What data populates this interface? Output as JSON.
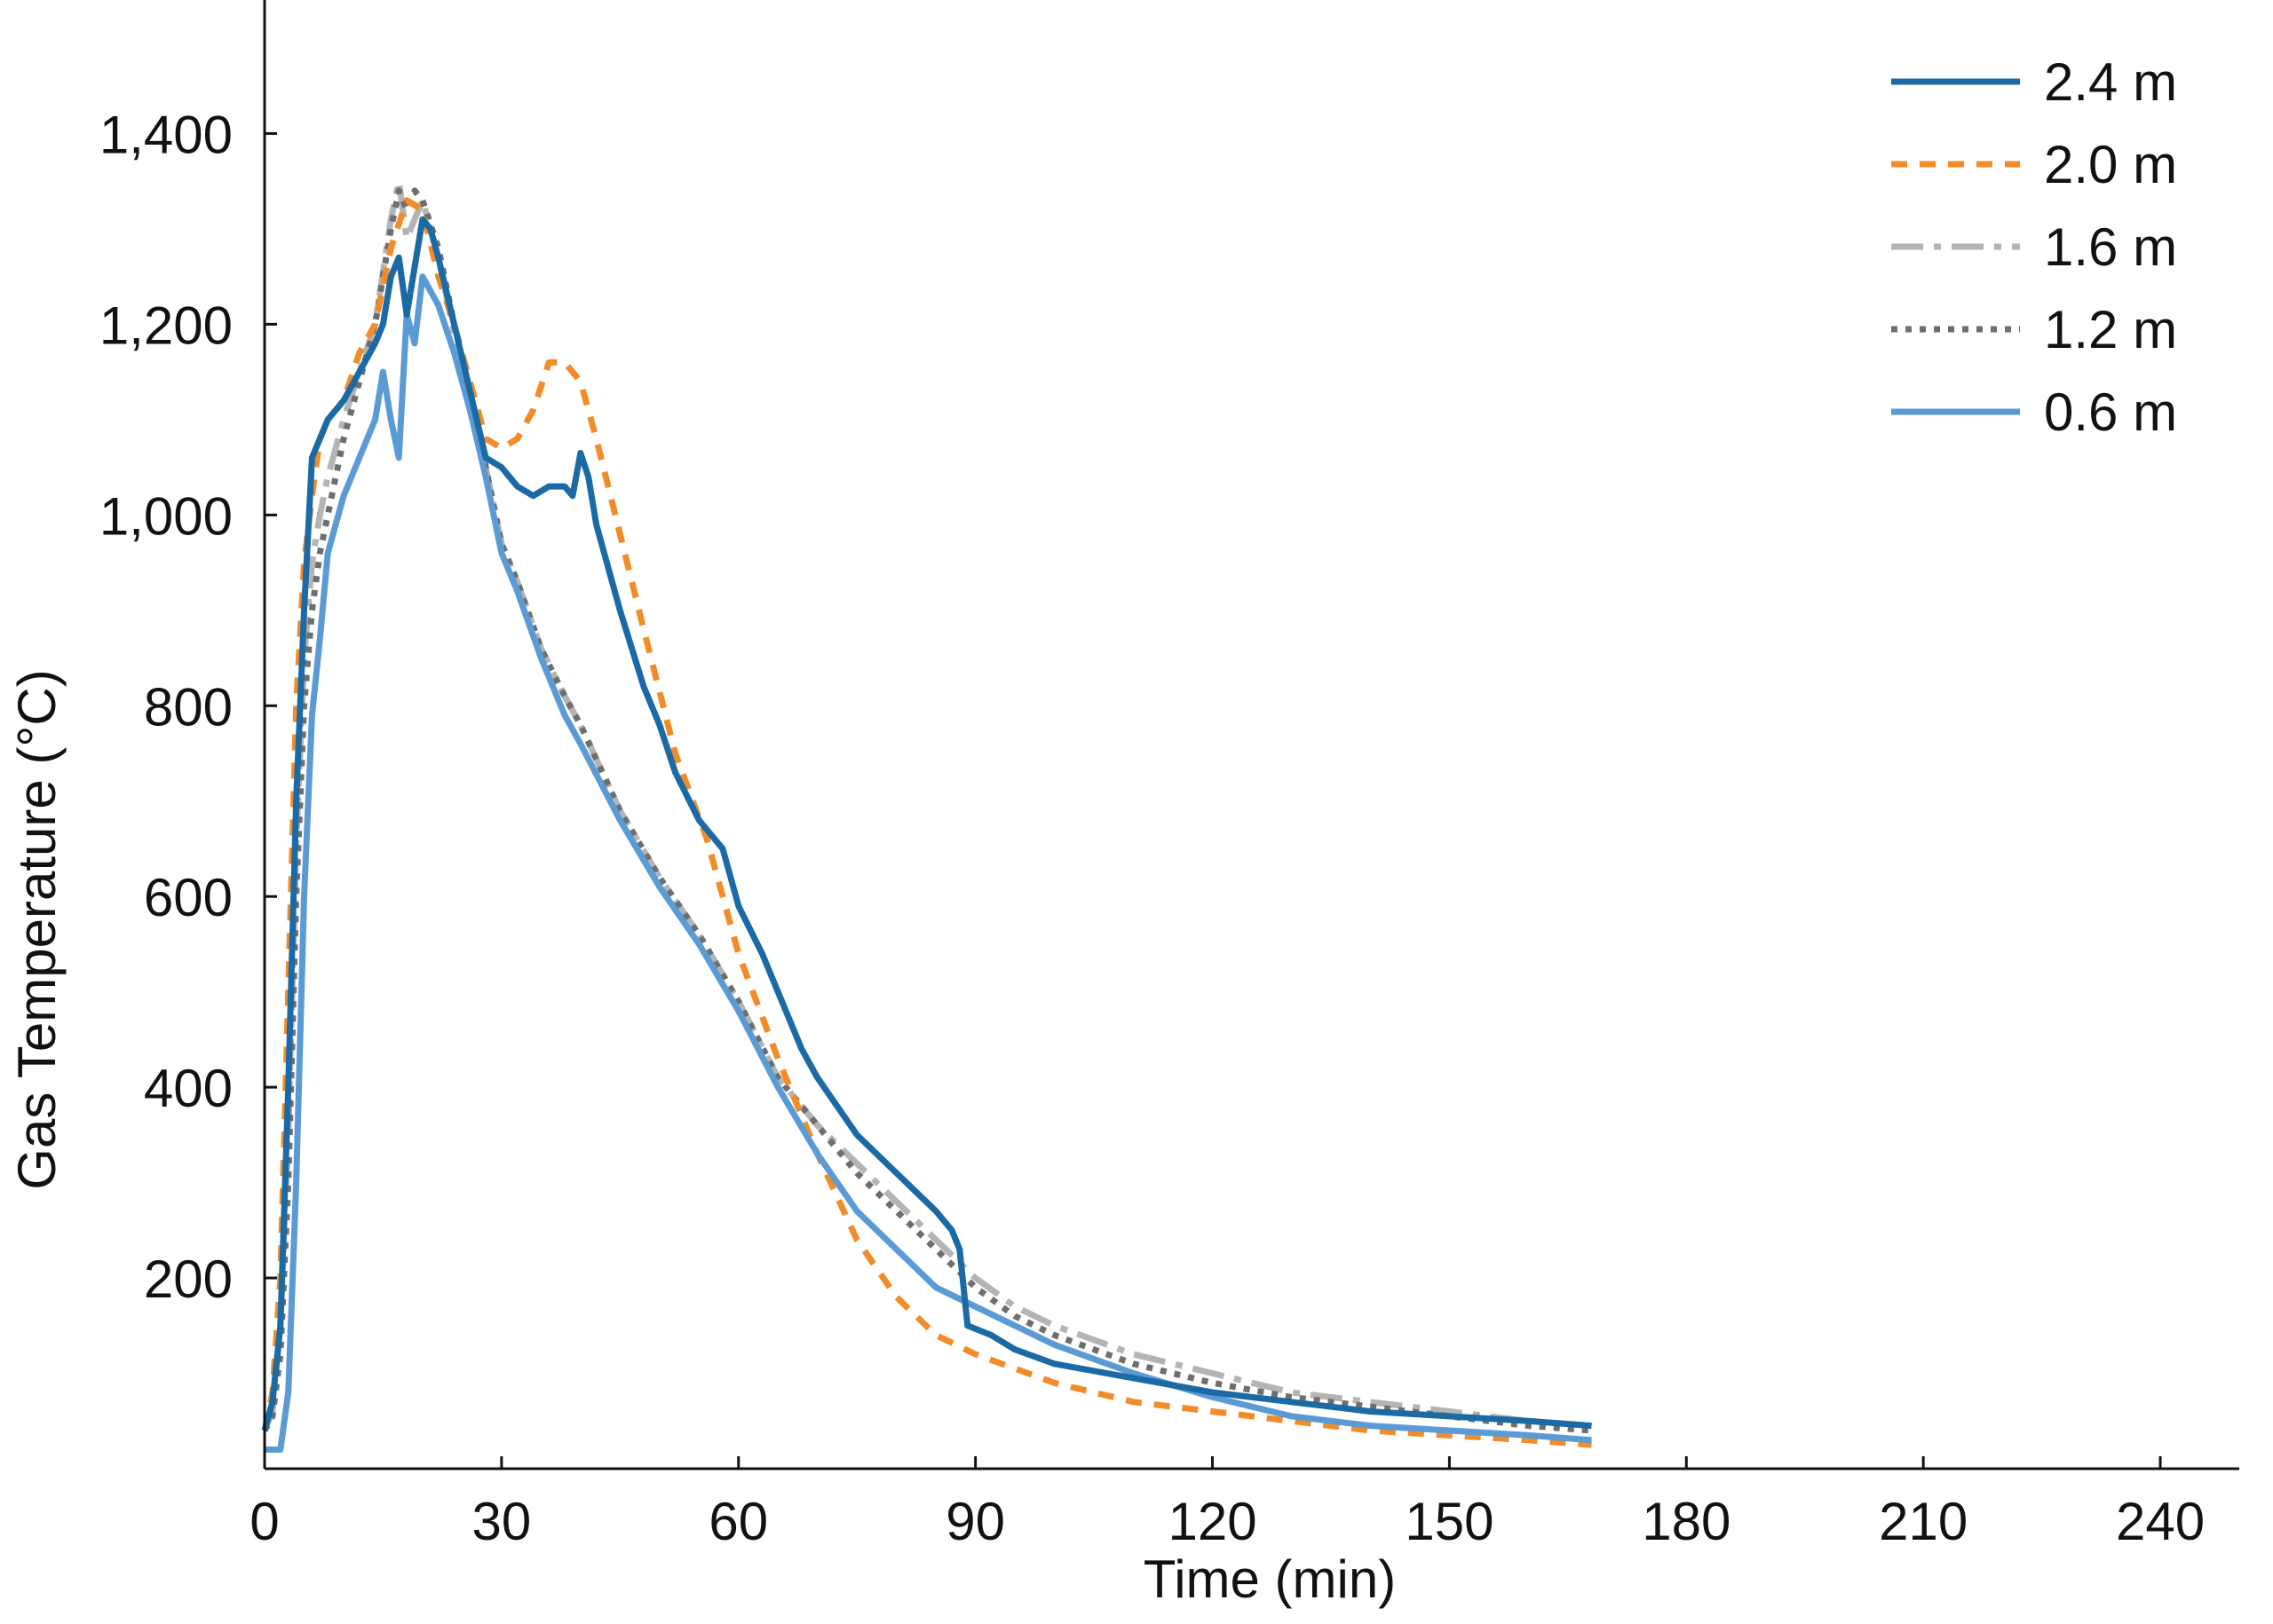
{
  "chart_data": {
    "type": "line",
    "xlabel": "Time (min)",
    "ylabel": "Gas Temperature (°C)",
    "xlim": [
      0,
      250
    ],
    "ylim": [
      0,
      1540
    ],
    "x_ticks": [
      0,
      30,
      60,
      90,
      120,
      150,
      180,
      210,
      240
    ],
    "x_tick_labels": [
      "0",
      "30",
      "60",
      "90",
      "120",
      "150",
      "180",
      "210",
      "240"
    ],
    "y_ticks": [
      200,
      400,
      600,
      800,
      1000,
      1200,
      1400
    ],
    "y_tick_labels": [
      "200",
      "400",
      "600",
      "800",
      "1,000",
      "1,200",
      "1,400"
    ],
    "grid": false,
    "legend_position": "top-right",
    "series": [
      {
        "name": "2.4 m",
        "color": "#1b6aa5",
        "dash": "solid",
        "x": [
          0,
          1,
          2,
          3,
          4,
          5,
          6,
          7,
          8,
          10,
          12,
          14,
          15,
          16,
          17,
          18,
          19,
          20,
          21,
          22,
          24,
          26,
          28,
          30,
          32,
          34,
          36,
          38,
          39,
          40,
          41,
          42,
          45,
          48,
          50,
          52,
          55,
          58,
          60,
          63,
          65,
          68,
          70,
          75,
          80,
          85,
          87,
          88,
          89,
          92,
          95,
          100,
          110,
          120,
          130,
          140,
          150,
          160,
          168
        ],
        "y": [
          40,
          70,
          150,
          400,
          700,
          900,
          1060,
          1080,
          1100,
          1120,
          1150,
          1180,
          1200,
          1250,
          1270,
          1210,
          1260,
          1310,
          1300,
          1270,
          1200,
          1130,
          1060,
          1050,
          1030,
          1020,
          1030,
          1030,
          1020,
          1065,
          1040,
          990,
          900,
          820,
          780,
          730,
          680,
          650,
          590,
          540,
          500,
          440,
          410,
          350,
          310,
          270,
          250,
          230,
          150,
          140,
          125,
          110,
          95,
          80,
          70,
          60,
          55,
          50,
          45
        ]
      },
      {
        "name": "2.0 m",
        "color": "#f28c28",
        "dash": "18 14",
        "x": [
          0,
          1,
          2,
          3,
          4,
          5,
          6,
          7,
          8,
          10,
          12,
          14,
          16,
          18,
          20,
          22,
          24,
          26,
          28,
          30,
          32,
          34,
          36,
          38,
          40,
          42,
          45,
          48,
          52,
          56,
          60,
          65,
          70,
          75,
          80,
          85,
          90,
          100,
          110,
          120,
          130,
          140,
          150,
          160,
          168
        ],
        "y": [
          40,
          80,
          200,
          500,
          800,
          950,
          1020,
          1080,
          1100,
          1120,
          1170,
          1200,
          1280,
          1330,
          1320,
          1250,
          1200,
          1140,
          1080,
          1070,
          1080,
          1110,
          1160,
          1160,
          1140,
          1080,
          980,
          880,
          750,
          660,
          540,
          430,
          330,
          240,
          180,
          140,
          120,
          90,
          70,
          60,
          50,
          40,
          35,
          30,
          25
        ]
      },
      {
        "name": "1.6 m",
        "color": "#b4b4b4",
        "dash": "36 12 8 12",
        "x": [
          0,
          1,
          2,
          3,
          4,
          5,
          6,
          7,
          8,
          10,
          12,
          14,
          16,
          17,
          18,
          20,
          22,
          24,
          26,
          28,
          30,
          32,
          35,
          38,
          40,
          45,
          50,
          55,
          60,
          65,
          70,
          75,
          80,
          85,
          90,
          95,
          100,
          110,
          120,
          130,
          140,
          150,
          160,
          168
        ],
        "y": [
          40,
          60,
          150,
          350,
          650,
          850,
          950,
          1000,
          1040,
          1100,
          1150,
          1200,
          1310,
          1350,
          1290,
          1330,
          1270,
          1190,
          1120,
          1050,
          970,
          930,
          860,
          810,
          780,
          690,
          620,
          560,
          490,
          410,
          360,
          320,
          280,
          240,
          200,
          170,
          150,
          120,
          100,
          80,
          70,
          60,
          50,
          45
        ]
      },
      {
        "name": "1.2 m",
        "color": "#6e6e6e",
        "dash": "7 9",
        "x": [
          0,
          1,
          2,
          3,
          4,
          5,
          6,
          7,
          8,
          10,
          12,
          14,
          16,
          17,
          18,
          19,
          20,
          22,
          24,
          26,
          28,
          30,
          32,
          35,
          38,
          40,
          45,
          50,
          55,
          60,
          65,
          70,
          75,
          80,
          85,
          90,
          95,
          100,
          110,
          120,
          130,
          140,
          150,
          160,
          168
        ],
        "y": [
          40,
          55,
          120,
          300,
          600,
          800,
          900,
          960,
          1000,
          1080,
          1140,
          1200,
          1300,
          1340,
          1320,
          1340,
          1330,
          1280,
          1200,
          1130,
          1050,
          970,
          930,
          860,
          810,
          780,
          690,
          620,
          560,
          490,
          410,
          360,
          310,
          270,
          230,
          190,
          160,
          140,
          110,
          90,
          75,
          65,
          55,
          45,
          40
        ]
      },
      {
        "name": "0.6 m",
        "color": "#5b9bd5",
        "dash": "solid",
        "x": [
          0,
          2,
          3,
          4,
          5,
          6,
          7,
          8,
          10,
          12,
          14,
          15,
          16,
          17,
          18,
          19,
          20,
          22,
          24,
          26,
          28,
          30,
          32,
          35,
          38,
          40,
          45,
          50,
          55,
          60,
          65,
          70,
          75,
          80,
          85,
          90,
          95,
          100,
          110,
          120,
          130,
          140,
          150,
          160,
          168
        ],
        "y": [
          20,
          20,
          80,
          300,
          600,
          790,
          870,
          960,
          1020,
          1060,
          1100,
          1150,
          1100,
          1060,
          1210,
          1180,
          1250,
          1220,
          1170,
          1110,
          1040,
          960,
          920,
          850,
          790,
          760,
          680,
          610,
          550,
          480,
          400,
          330,
          270,
          230,
          190,
          170,
          150,
          130,
          100,
          75,
          55,
          45,
          40,
          35,
          30
        ]
      }
    ]
  }
}
